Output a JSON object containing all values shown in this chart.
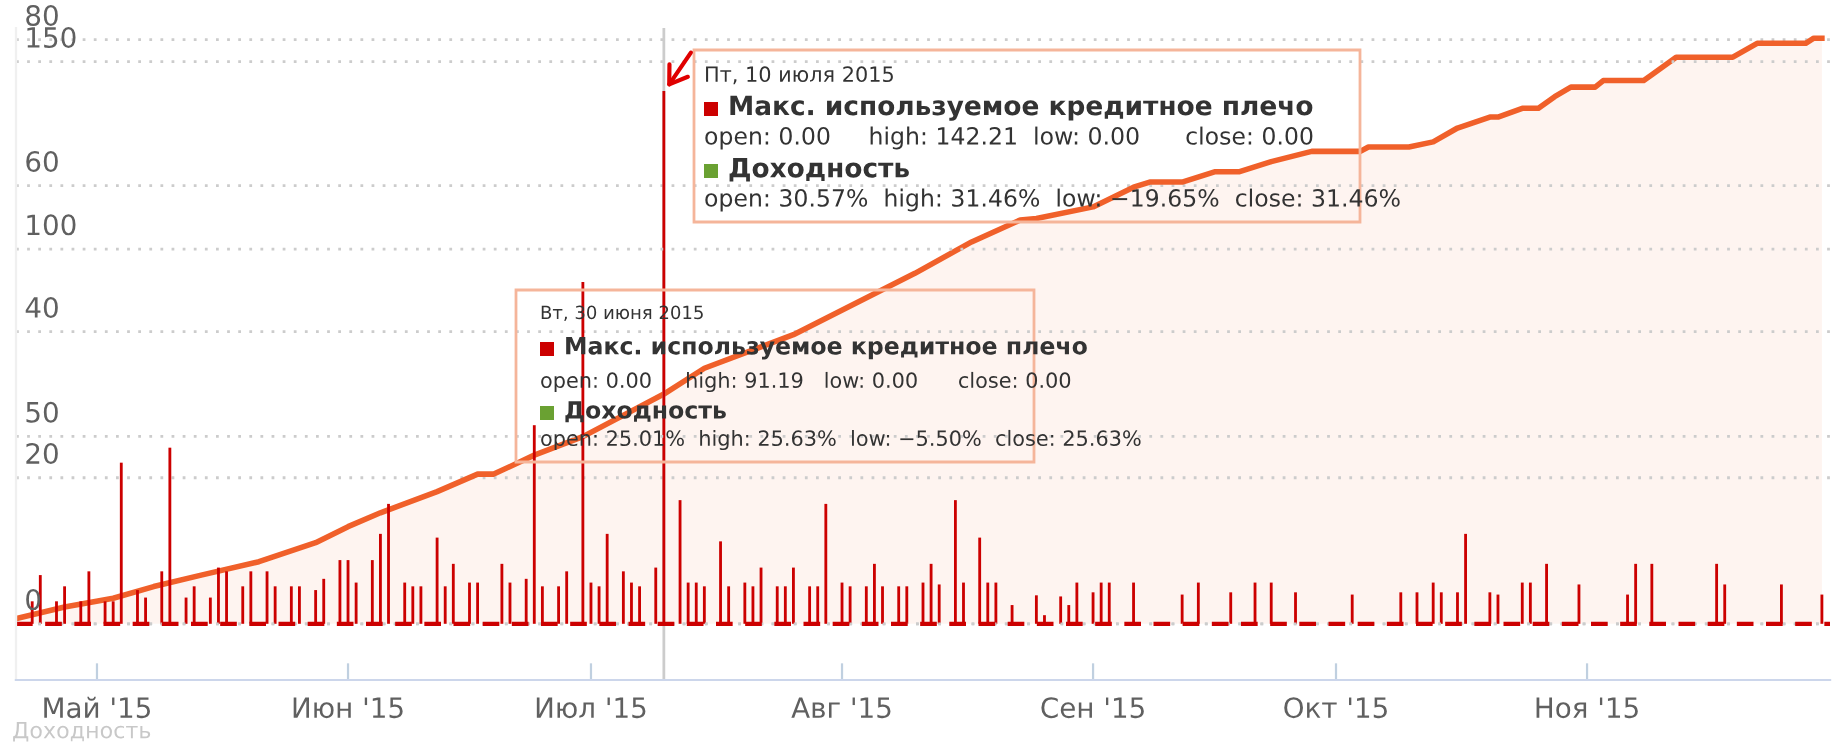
{
  "chart_data": {
    "type": "bar",
    "xlim": [
      "2015-04-21",
      "2015-12-01"
    ],
    "xticks": [
      {
        "value": "2015-05-01",
        "label": "Май '15"
      },
      {
        "value": "2015-06-01",
        "label": "Июн '15"
      },
      {
        "value": "2015-07-01",
        "label": "Июл '15"
      },
      {
        "value": "2015-08-01",
        "label": "Авг '15"
      },
      {
        "value": "2015-09-01",
        "label": "Сен '15"
      },
      {
        "value": "2015-10-01",
        "label": "Окт '15"
      },
      {
        "value": "2015-11-01",
        "label": "Ноя '15"
      }
    ],
    "ylim": [
      -15,
      159
    ],
    "yticks": [
      0,
      50,
      100,
      150
    ],
    "y2lim": [
      -7.7,
      81.6
    ],
    "y2ticks": [
      {
        "value": 0,
        "label": null
      },
      20,
      40,
      60,
      80
    ],
    "grid": "y",
    "series": [
      {
        "color": "#cc0000",
        "x": [
          "2015-04-23",
          "2015-04-24",
          "2015-04-26",
          "2015-04-27",
          "2015-04-29",
          "2015-04-30",
          "2015-05-02",
          "2015-05-03",
          "2015-05-04",
          "2015-05-06",
          "2015-05-07",
          "2015-05-09",
          "2015-05-10",
          "2015-05-12",
          "2015-05-13",
          "2015-05-15",
          "2015-05-16",
          "2015-05-17",
          "2015-05-19",
          "2015-05-20",
          "2015-05-22",
          "2015-05-23",
          "2015-05-25",
          "2015-05-26",
          "2015-05-28",
          "2015-05-29",
          "2015-05-31",
          "2015-06-01",
          "2015-06-02",
          "2015-06-04",
          "2015-06-05",
          "2015-06-06",
          "2015-06-08",
          "2015-06-09",
          "2015-06-10",
          "2015-06-12",
          "2015-06-13",
          "2015-06-14",
          "2015-06-16",
          "2015-06-17",
          "2015-06-20",
          "2015-06-21",
          "2015-06-23",
          "2015-06-24",
          "2015-06-25",
          "2015-06-27",
          "2015-06-28",
          "2015-06-30",
          "2015-07-01",
          "2015-07-02",
          "2015-07-03",
          "2015-07-05",
          "2015-07-06",
          "2015-07-07",
          "2015-07-09",
          "2015-07-10",
          "2015-07-12",
          "2015-07-13",
          "2015-07-14",
          "2015-07-15",
          "2015-07-17",
          "2015-07-18",
          "2015-07-20",
          "2015-07-21",
          "2015-07-22",
          "2015-07-24",
          "2015-07-25",
          "2015-07-26",
          "2015-07-28",
          "2015-07-29",
          "2015-07-30",
          "2015-08-01",
          "2015-08-02",
          "2015-08-04",
          "2015-08-05",
          "2015-08-06",
          "2015-08-08",
          "2015-08-09",
          "2015-08-11",
          "2015-08-12",
          "2015-08-13",
          "2015-08-15",
          "2015-08-16",
          "2015-08-18",
          "2015-08-19",
          "2015-08-20",
          "2015-08-22",
          "2015-08-25",
          "2015-08-26",
          "2015-08-28",
          "2015-08-29",
          "2015-08-30",
          "2015-09-01",
          "2015-09-02",
          "2015-09-03",
          "2015-09-06",
          "2015-09-12",
          "2015-09-14",
          "2015-09-18",
          "2015-09-21",
          "2015-09-23",
          "2015-09-26",
          "2015-10-03",
          "2015-10-09",
          "2015-10-11",
          "2015-10-13",
          "2015-10-14",
          "2015-10-16",
          "2015-10-17",
          "2015-10-20",
          "2015-10-21",
          "2015-10-24",
          "2015-10-25",
          "2015-10-27",
          "2015-10-31",
          "2015-11-06",
          "2015-11-07",
          "2015-11-09",
          "2015-11-17",
          "2015-11-18",
          "2015-11-25",
          "2015-11-30"
        ],
        "values": [
          6,
          13,
          6,
          10,
          6,
          14,
          6,
          6,
          43,
          9,
          7,
          14,
          47,
          7,
          10,
          7,
          15,
          14,
          10,
          14,
          14,
          10,
          10,
          10,
          9,
          12,
          17,
          17,
          11,
          17,
          24,
          32,
          11,
          10,
          10,
          23,
          10,
          16,
          11,
          11,
          16,
          11,
          12,
          53,
          10,
          10,
          14,
          91.19,
          11,
          10,
          24,
          14,
          11,
          10,
          15,
          142.21,
          33,
          11,
          11,
          10,
          22,
          10,
          11,
          10,
          15,
          10,
          10,
          15,
          10,
          10,
          32,
          11,
          10,
          10,
          16,
          10,
          10,
          10,
          11,
          16,
          10.5,
          33,
          11,
          23,
          11,
          11,
          5,
          7.6,
          2.3,
          7.3,
          5,
          11,
          8.4,
          11,
          11,
          11,
          7.8,
          11,
          8.4,
          11,
          11,
          8.4,
          7.8,
          8.4,
          8.4,
          11,
          8.4,
          8.4,
          24,
          8.4,
          7.8,
          11,
          11,
          16,
          10.5,
          7.8,
          16,
          16,
          16,
          10.5,
          10.5,
          7.8
        ]
      },
      {
        "type": "area",
        "axis": "y2",
        "color": "#f0602a",
        "x": [
          "2015-04-21",
          "2015-04-27",
          "2015-05-03",
          "2015-05-08",
          "2015-05-14",
          "2015-05-21",
          "2015-05-28",
          "2015-06-01",
          "2015-06-05",
          "2015-06-12",
          "2015-06-17",
          "2015-06-19",
          "2015-06-24",
          "2015-06-30",
          "2015-07-10",
          "2015-07-15",
          "2015-07-26",
          "2015-08-10",
          "2015-08-17",
          "2015-08-23",
          "2015-08-25",
          "2015-09-01",
          "2015-09-06",
          "2015-09-08",
          "2015-09-12",
          "2015-09-16",
          "2015-09-19",
          "2015-09-23",
          "2015-09-28",
          "2015-10-04",
          "2015-10-05",
          "2015-10-10",
          "2015-10-13",
          "2015-10-16",
          "2015-10-20",
          "2015-10-21",
          "2015-10-24",
          "2015-10-26",
          "2015-10-28",
          "2015-10-30",
          "2015-11-02",
          "2015-11-03",
          "2015-11-08",
          "2015-11-09",
          "2015-11-12",
          "2015-11-19",
          "2015-11-22",
          "2015-11-28",
          "2015-11-29",
          "2015-11-30"
        ],
        "values": [
          0.7,
          2.3,
          3.5,
          5.1,
          6.7,
          8.5,
          11.1,
          13.3,
          15.2,
          18.1,
          20.5,
          20.5,
          23.1,
          25.63,
          31.46,
          35,
          39.6,
          48,
          52.3,
          55.3,
          55.5,
          57.1,
          59.8,
          60.5,
          60.5,
          61.9,
          61.9,
          63.3,
          64.7,
          64.7,
          65.3,
          65.3,
          66,
          67.9,
          69.4,
          69.4,
          70.6,
          70.6,
          72.2,
          73.5,
          73.5,
          74.4,
          74.4,
          75.2,
          77.6,
          77.6,
          79.5,
          79.5,
          80.2,
          80.2
        ]
      }
    ],
    "ref_lines": [
      {
        "axis": "x",
        "value": "2015-07-10",
        "color": "#cccccc",
        "line_style": "solid"
      },
      {
        "axis": "y",
        "value": 0,
        "color": "#cc0000",
        "line_style": "dashed"
      }
    ],
    "annotations": [
      "Пт, 10 июля 2015\nМакс. используемое кредитное плечо\nopen: 0.00     high: 142.21  low: 0.00      close: 0.00\nДоходность\nopen: 30.57%  high: 31.46%  low: −19.65%  close: 31.46%",
      "Вт, 30 июня 2015\nМакс. используемое кредитное плечо\nopen: 0.00     high: 91.19   low: 0.00      close: 0.00\nДоходность\nopen: 25.01%  high: 25.63%  low: −5.50%  close: 25.63%",
      "Доходность"
    ]
  }
}
